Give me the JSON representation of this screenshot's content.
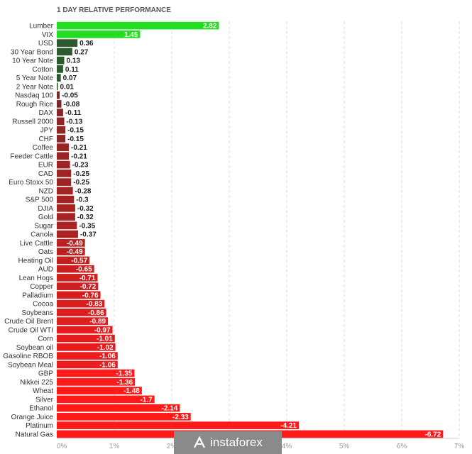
{
  "chart_data": {
    "type": "bar",
    "orientation": "horizontal",
    "title": "1 DAY RELATIVE PERFORMANCE",
    "xlim": [
      0,
      7
    ],
    "x_ticks": [
      "0%",
      "1%",
      "2%",
      "3%",
      "4%",
      "5%",
      "6%",
      "7%"
    ],
    "grid": "vertical dashed",
    "categories": [
      "Lumber",
      "VIX",
      "USD",
      "30 Year Bond",
      "10 Year Note",
      "Cotton",
      "5 Year Note",
      "2 Year Note",
      "Nasdaq 100",
      "Rough Rice",
      "DAX",
      "Russell 2000",
      "JPY",
      "CHF",
      "Coffee",
      "Feeder Cattle",
      "EUR",
      "CAD",
      "Euro Stoxx 50",
      "NZD",
      "S&P 500",
      "DJIA",
      "Gold",
      "Sugar",
      "Canola",
      "Live Cattle",
      "Oats",
      "Heating Oil",
      "AUD",
      "Lean Hogs",
      "Copper",
      "Palladium",
      "Cocoa",
      "Soybeans",
      "Crude Oil Brent",
      "Crude Oil WTI",
      "Corn",
      "Soybean oil",
      "Gasoline RBOB",
      "Soybean Meal",
      "GBP",
      "Nikkei 225",
      "Wheat",
      "Silver",
      "Ethanol",
      "Orange Juice",
      "Platinum",
      "Natural Gas"
    ],
    "values": [
      2.82,
      1.45,
      0.36,
      0.27,
      0.13,
      0.11,
      0.07,
      0.01,
      -0.05,
      -0.08,
      -0.11,
      -0.13,
      -0.15,
      -0.15,
      -0.21,
      -0.21,
      -0.23,
      -0.25,
      -0.25,
      -0.28,
      -0.3,
      -0.32,
      -0.32,
      -0.35,
      -0.37,
      -0.49,
      -0.49,
      -0.57,
      -0.65,
      -0.71,
      -0.72,
      -0.76,
      -0.83,
      -0.86,
      -0.89,
      -0.97,
      -1.01,
      -1.02,
      -1.06,
      -1.06,
      -1.35,
      -1.36,
      -1.48,
      -1.7,
      -2.14,
      -2.33,
      -4.21,
      -6.72
    ],
    "value_labels": [
      "2.82",
      "1.45",
      "0.36",
      "0.27",
      "0.13",
      "0.11",
      "0.07",
      "0.01",
      "-0.05",
      "-0.08",
      "-0.11",
      "-0.13",
      "-0.15",
      "-0.15",
      "-0.21",
      "-0.21",
      "-0.23",
      "-0.25",
      "-0.25",
      "-0.28",
      "-0.3",
      "-0.32",
      "-0.32",
      "-0.35",
      "-0.37",
      "-0.49",
      "-0.49",
      "-0.57",
      "-0.65",
      "-0.71",
      "-0.72",
      "-0.76",
      "-0.83",
      "-0.86",
      "-0.89",
      "-0.97",
      "-1.01",
      "-1.02",
      "-1.06",
      "-1.06",
      "-1.35",
      "-1.36",
      "-1.48",
      "-1.7",
      "-2.14",
      "-2.33",
      "-4.21",
      "-6.72"
    ],
    "colors": {
      "positive_strong": "#22dd22",
      "positive_weak": "#2d5a2d",
      "negative_weak": "#5a2a2a",
      "negative_strong": "#ff1a1a",
      "grid": "#dddddd",
      "axis": "#cccccc"
    }
  },
  "watermark": {
    "text": "instaforex",
    "logo_icon": "instaforex-logo-icon"
  }
}
